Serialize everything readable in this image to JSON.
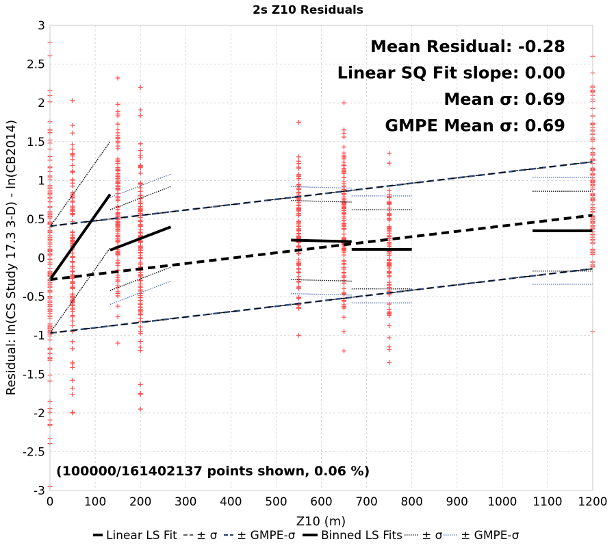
{
  "chart_data": {
    "type": "scatter",
    "title": "2s Z10 Residuals",
    "xlabel": "Z10 (m)",
    "ylabel": "Residual: ln(CS Study 17.3 3-D) - ln(CB2014)",
    "xlim": [
      0,
      1200
    ],
    "ylim": [
      -3,
      3
    ],
    "x_ticks": [
      "0",
      "100",
      "200",
      "300",
      "400",
      "500",
      "600",
      "700",
      "800",
      "900",
      "1000",
      "1100",
      "1200"
    ],
    "y_ticks": [
      "-3",
      "-2.5",
      "-2",
      "-1.5",
      "-1",
      "-0.5",
      "0",
      "0.5",
      "1",
      "1.5",
      "2",
      "2.5",
      "3"
    ],
    "grid": true,
    "annotations": [
      "Mean Residual: -0.28",
      "Linear SQ Fit slope: 0.00",
      "Mean σ: 0.69",
      "GMPE Mean σ: 0.69"
    ],
    "points_note": "(100000/161402137 points shown, 0.06 %)",
    "legend": [
      "Linear LS Fit",
      "± σ",
      "± GMPE-σ",
      "Binned LS Fits",
      "± σ",
      "± GMPE-σ"
    ],
    "legend_position": "bottom",
    "scatter_columns": [
      {
        "x": 0,
        "ymin": -2.95,
        "ymax": 2.78
      },
      {
        "x": 50,
        "ymin": -2.0,
        "ymax": 2.03
      },
      {
        "x": 150,
        "ymin": -1.1,
        "ymax": 2.32
      },
      {
        "x": 200,
        "ymin": -1.95,
        "ymax": 2.2
      },
      {
        "x": 550,
        "ymin": -1.0,
        "ymax": 1.75
      },
      {
        "x": 650,
        "ymin": -1.2,
        "ymax": 2.0
      },
      {
        "x": 750,
        "ymin": -1.35,
        "ymax": 1.35
      },
      {
        "x": 1200,
        "ymin": -0.95,
        "ymax": 2.6
      }
    ],
    "linear_fit": {
      "x": [
        0,
        1200
      ],
      "y": [
        -0.28,
        0.55
      ]
    },
    "linear_sigma_upper": {
      "x": [
        0,
        1200
      ],
      "y": [
        0.41,
        1.24
      ]
    },
    "linear_sigma_lower": {
      "x": [
        0,
        1200
      ],
      "y": [
        -0.97,
        -0.14
      ]
    },
    "linear_gmpe_upper": {
      "x": [
        0,
        1200
      ],
      "y": [
        0.41,
        1.24
      ]
    },
    "linear_gmpe_lower": {
      "x": [
        0,
        1200
      ],
      "y": [
        -0.97,
        -0.14
      ]
    },
    "binned_fits": [
      {
        "x": [
          0,
          133
        ],
        "y": [
          -0.28,
          0.82
        ],
        "sigma_upper": [
          0.4,
          1.5
        ],
        "sigma_lower": [
          -0.97,
          0.13
        ],
        "gmpe_upper": [
          0.4,
          1.5
        ],
        "gmpe_lower": [
          -0.97,
          0.13
        ]
      },
      {
        "x": [
          133,
          267
        ],
        "y": [
          0.1,
          0.4
        ],
        "sigma_upper": [
          0.62,
          0.92
        ],
        "sigma_lower": [
          -0.42,
          -0.12
        ],
        "gmpe_upper": [
          0.78,
          1.08
        ],
        "gmpe_lower": [
          -0.6,
          -0.3
        ]
      },
      {
        "x": [
          533,
          667
        ],
        "y": [
          0.23,
          0.21
        ],
        "sigma_upper": [
          0.74,
          0.72
        ],
        "sigma_lower": [
          -0.28,
          -0.3
        ],
        "gmpe_upper": [
          0.92,
          0.9
        ],
        "gmpe_lower": [
          -0.46,
          -0.48
        ]
      },
      {
        "x": [
          667,
          800
        ],
        "y": [
          0.11,
          0.11
        ],
        "sigma_upper": [
          0.62,
          0.62
        ],
        "sigma_lower": [
          -0.4,
          -0.4
        ],
        "gmpe_upper": [
          0.8,
          0.8
        ],
        "gmpe_lower": [
          -0.58,
          -0.58
        ]
      },
      {
        "x": [
          1067,
          1200
        ],
        "y": [
          0.35,
          0.35
        ],
        "sigma_upper": [
          0.86,
          0.86
        ],
        "sigma_lower": [
          -0.17,
          -0.17
        ],
        "gmpe_upper": [
          1.04,
          1.04
        ],
        "gmpe_lower": [
          -0.34,
          -0.34
        ]
      }
    ]
  },
  "colors": {
    "points": "#ff5050",
    "fit": "#000000",
    "gmpe": "#2f4a78",
    "gmpe_binned": "#4a6ab0",
    "grid": "#d8d8d8",
    "plot_border": "#c8c8c8"
  }
}
